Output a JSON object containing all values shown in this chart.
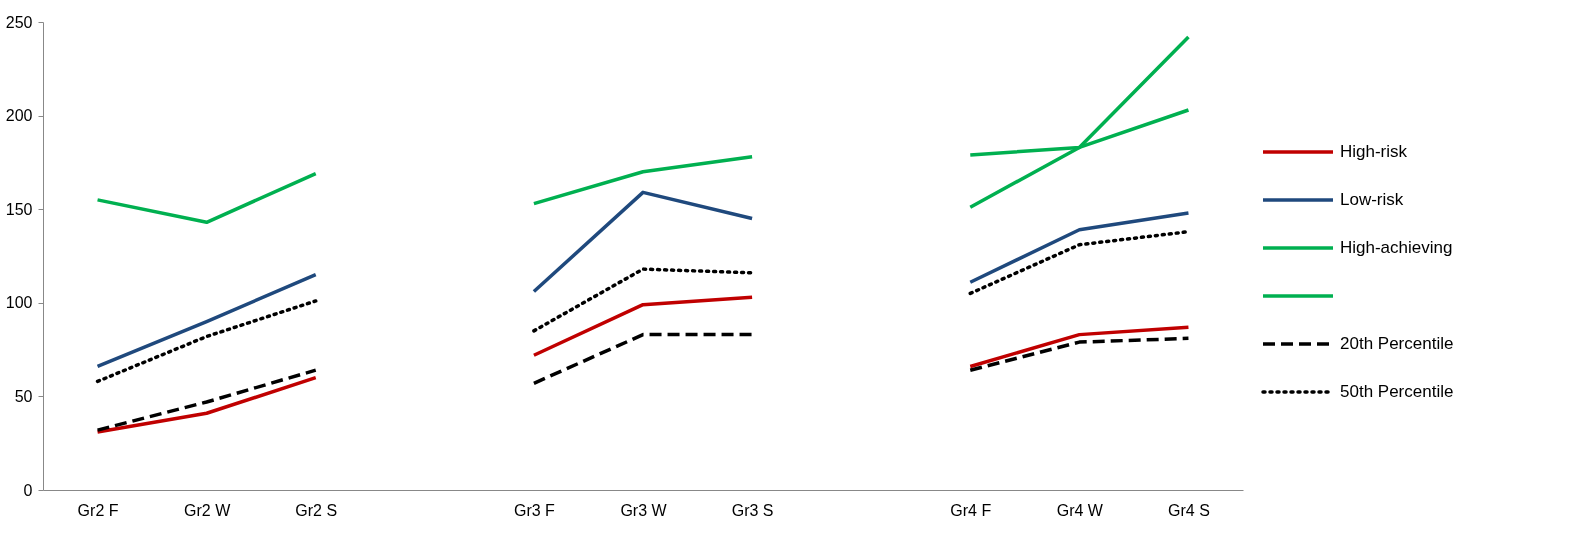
{
  "chart_data": {
    "type": "line",
    "categories": [
      "Gr2 F",
      "Gr2 W",
      "Gr2 S",
      null,
      "Gr3 F",
      "Gr3 W",
      "Gr3 S",
      null,
      "Gr4 F",
      "Gr4 W",
      "Gr4 S"
    ],
    "series": [
      {
        "name": "High-risk",
        "color": "#c00000",
        "line_style": "solid",
        "values": [
          31,
          41,
          60,
          null,
          72,
          99,
          103,
          null,
          66,
          83,
          87
        ]
      },
      {
        "name": "Low-risk",
        "color": "#1f497d",
        "line_style": "solid",
        "values": [
          66,
          90,
          115,
          null,
          106,
          159,
          145,
          null,
          111,
          139,
          148
        ]
      },
      {
        "name": "High-achieving",
        "color": "#00b050",
        "line_style": "solid",
        "values": [
          155,
          143,
          169,
          null,
          153,
          170,
          178,
          null,
          179,
          183,
          203
        ]
      },
      {
        "color": "#00b050",
        "line_style": "solid",
        "values": [
          null,
          null,
          null,
          null,
          null,
          null,
          null,
          null,
          151,
          183,
          242
        ]
      },
      {
        "name": "20th Percentile",
        "color": "#000000",
        "line_style": "dashed",
        "values": [
          32,
          47,
          64,
          null,
          57,
          83,
          83,
          null,
          64,
          79,
          81
        ]
      },
      {
        "name": "50th Percentile",
        "color": "#000000",
        "line_style": "dotted",
        "values": [
          58,
          82,
          101,
          null,
          85,
          118,
          116,
          null,
          105,
          131,
          138
        ]
      }
    ],
    "ylim": [
      0,
      250
    ],
    "yticks": [
      0,
      50,
      100,
      150,
      200,
      250
    ],
    "grid": false,
    "legend": "right"
  }
}
